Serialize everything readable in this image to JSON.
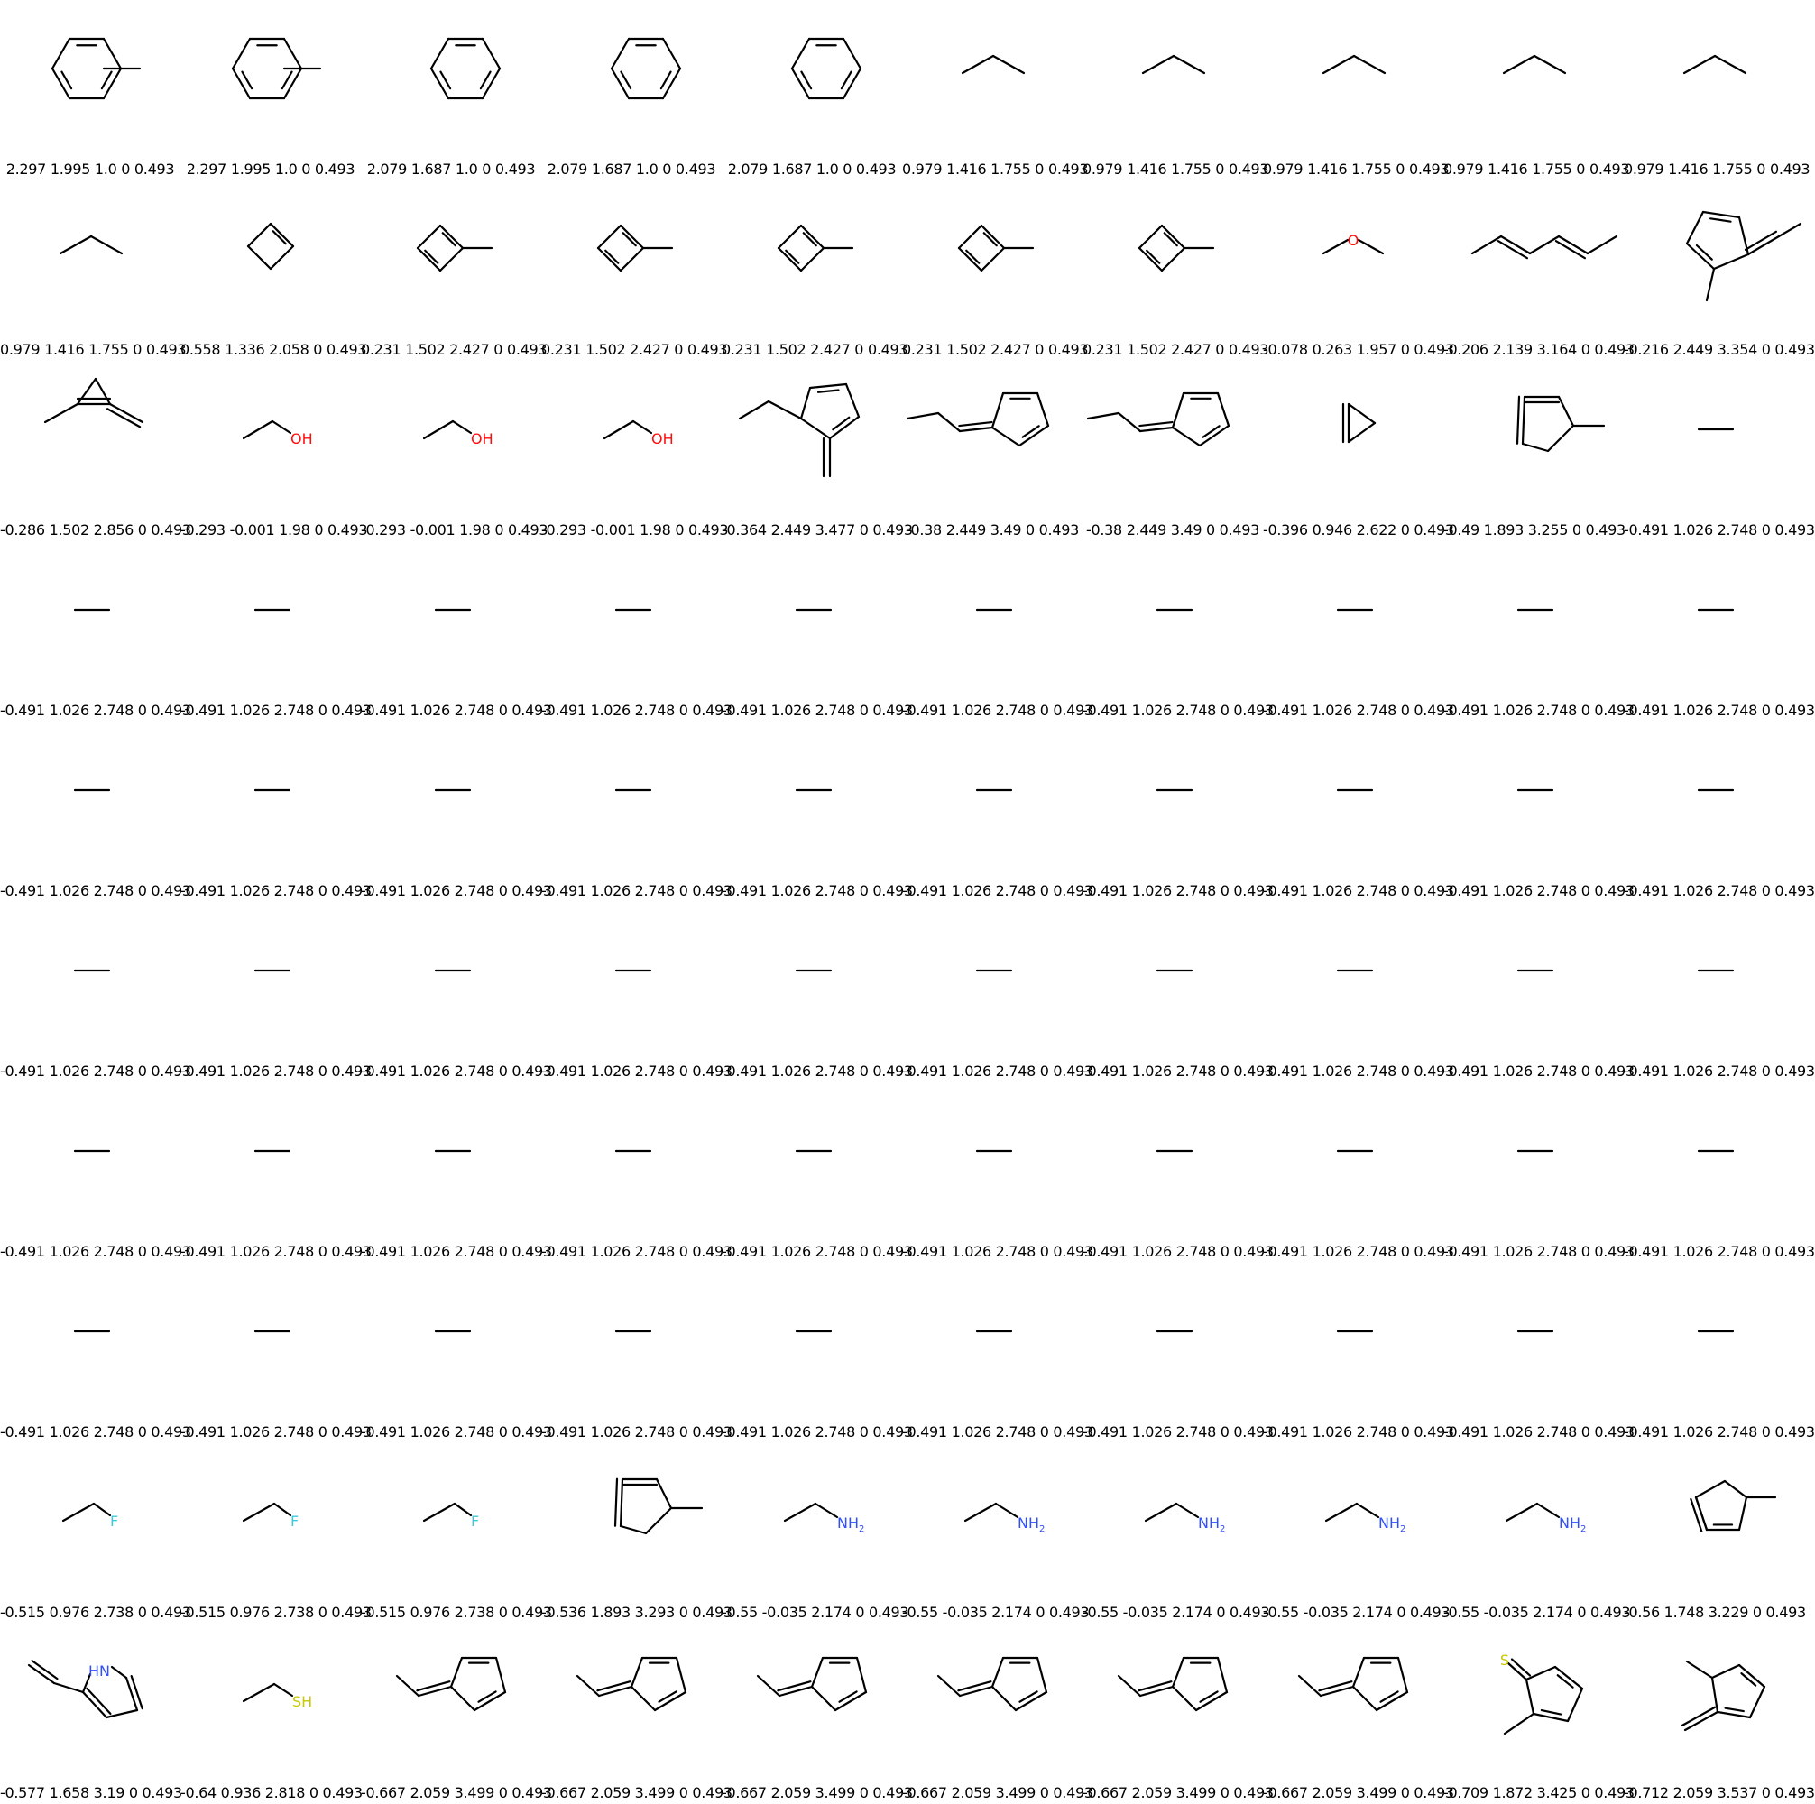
{
  "colors": {
    "bond": "#000000",
    "O": "#ff0d0d",
    "N": "#3050f8",
    "F": "#40c8d8",
    "S": "#c8c800"
  },
  "molecules": [
    {
      "label": "2.297 1.995 1.0 0 0.493",
      "structure": "toluene"
    },
    {
      "label": "2.297 1.995 1.0 0 0.493",
      "structure": "toluene"
    },
    {
      "label": "2.079 1.687 1.0 0 0.493",
      "structure": "benzene"
    },
    {
      "label": "2.079 1.687 1.0 0 0.493",
      "structure": "benzene"
    },
    {
      "label": "2.079 1.687 1.0 0 0.493",
      "structure": "benzene"
    },
    {
      "label": "0.979 1.416 1.755 0 0.493",
      "structure": "propane"
    },
    {
      "label": "0.979 1.416 1.755 0 0.493",
      "structure": "propane"
    },
    {
      "label": "0.979 1.416 1.755 0 0.493",
      "structure": "propane"
    },
    {
      "label": "0.979 1.416 1.755 0 0.493",
      "structure": "propane"
    },
    {
      "label": "0.979 1.416 1.755 0 0.493",
      "structure": "propane"
    },
    {
      "label": "0.979 1.416 1.755 0 0.493",
      "structure": "propane"
    },
    {
      "label": "0.558 1.336 2.058 0 0.493",
      "structure": "cyclobutene"
    },
    {
      "label": "0.231 1.502 2.427 0 0.493",
      "structure": "methylcyclobutadiene"
    },
    {
      "label": "0.231 1.502 2.427 0 0.493",
      "structure": "methylcyclobutadiene"
    },
    {
      "label": "0.231 1.502 2.427 0 0.493",
      "structure": "methylcyclobutadiene"
    },
    {
      "label": "0.231 1.502 2.427 0 0.493",
      "structure": "methylcyclobutadiene"
    },
    {
      "label": "0.231 1.502 2.427 0 0.493",
      "structure": "methylcyclobutadiene"
    },
    {
      "label": "-0.078 0.263 1.957 0 0.493",
      "structure": "dimethyl-ether",
      "atom": "O"
    },
    {
      "label": "-0.206 2.139 3.164 0 0.493",
      "structure": "hexadiene"
    },
    {
      "label": "-0.216 2.449 3.354 0 0.493",
      "structure": "ethylidene-methylcyclopentadiene"
    },
    {
      "label": "-0.286 1.502 2.856 0 0.493",
      "structure": "methylene-methylcyclopropene"
    },
    {
      "label": "-0.293 -0.001 1.98 0 0.493",
      "structure": "ethanol",
      "atom": "OH"
    },
    {
      "label": "-0.293 -0.001 1.98 0 0.493",
      "structure": "ethanol",
      "atom": "OH"
    },
    {
      "label": "-0.293 -0.001 1.98 0 0.493",
      "structure": "ethanol",
      "atom": "OH"
    },
    {
      "label": "-0.364 2.449 3.477 0 0.493",
      "structure": "ethyl-methylene-cyclopentadiene"
    },
    {
      "label": "-0.38 2.449 3.49 0 0.493",
      "structure": "propylidene-cyclopentadiene"
    },
    {
      "label": "-0.38 2.449 3.49 0 0.493",
      "structure": "propylidene-cyclopentadiene"
    },
    {
      "label": "-0.396 0.946 2.622 0 0.493",
      "structure": "cyclopropene"
    },
    {
      "label": "-0.49 1.893 3.255 0 0.493",
      "structure": "methylcyclopentadiene-a"
    },
    {
      "label": "-0.491 1.026 2.748 0 0.493",
      "structure": "ethane"
    },
    {
      "label": "-0.491 1.026 2.748 0 0.493",
      "structure": "ethane"
    },
    {
      "label": "-0.491 1.026 2.748 0 0.493",
      "structure": "ethane"
    },
    {
      "label": "-0.491 1.026 2.748 0 0.493",
      "structure": "ethane"
    },
    {
      "label": "-0.491 1.026 2.748 0 0.493",
      "structure": "ethane"
    },
    {
      "label": "-0.491 1.026 2.748 0 0.493",
      "structure": "ethane"
    },
    {
      "label": "-0.491 1.026 2.748 0 0.493",
      "structure": "ethane"
    },
    {
      "label": "-0.491 1.026 2.748 0 0.493",
      "structure": "ethane"
    },
    {
      "label": "-0.491 1.026 2.748 0 0.493",
      "structure": "ethane"
    },
    {
      "label": "-0.491 1.026 2.748 0 0.493",
      "structure": "ethane"
    },
    {
      "label": "-0.491 1.026 2.748 0 0.493",
      "structure": "ethane"
    },
    {
      "label": "-0.491 1.026 2.748 0 0.493",
      "structure": "ethane"
    },
    {
      "label": "-0.491 1.026 2.748 0 0.493",
      "structure": "ethane"
    },
    {
      "label": "-0.491 1.026 2.748 0 0.493",
      "structure": "ethane"
    },
    {
      "label": "-0.491 1.026 2.748 0 0.493",
      "structure": "ethane"
    },
    {
      "label": "-0.491 1.026 2.748 0 0.493",
      "structure": "ethane"
    },
    {
      "label": "-0.491 1.026 2.748 0 0.493",
      "structure": "ethane"
    },
    {
      "label": "-0.491 1.026 2.748 0 0.493",
      "structure": "ethane"
    },
    {
      "label": "-0.491 1.026 2.748 0 0.493",
      "structure": "ethane"
    },
    {
      "label": "-0.491 1.026 2.748 0 0.493",
      "structure": "ethane"
    },
    {
      "label": "-0.491 1.026 2.748 0 0.493",
      "structure": "ethane"
    },
    {
      "label": "-0.491 1.026 2.748 0 0.493",
      "structure": "ethane"
    },
    {
      "label": "-0.491 1.026 2.748 0 0.493",
      "structure": "ethane"
    },
    {
      "label": "-0.491 1.026 2.748 0 0.493",
      "structure": "ethane"
    },
    {
      "label": "-0.491 1.026 2.748 0 0.493",
      "structure": "ethane"
    },
    {
      "label": "-0.491 1.026 2.748 0 0.493",
      "structure": "ethane"
    },
    {
      "label": "-0.491 1.026 2.748 0 0.493",
      "structure": "ethane"
    },
    {
      "label": "-0.491 1.026 2.748 0 0.493",
      "structure": "ethane"
    },
    {
      "label": "-0.491 1.026 2.748 0 0.493",
      "structure": "ethane"
    },
    {
      "label": "-0.491 1.026 2.748 0 0.493",
      "structure": "ethane"
    },
    {
      "label": "-0.491 1.026 2.748 0 0.493",
      "structure": "ethane"
    },
    {
      "label": "-0.491 1.026 2.748 0 0.493",
      "structure": "ethane"
    },
    {
      "label": "-0.491 1.026 2.748 0 0.493",
      "structure": "ethane"
    },
    {
      "label": "-0.491 1.026 2.748 0 0.493",
      "structure": "ethane"
    },
    {
      "label": "-0.491 1.026 2.748 0 0.493",
      "structure": "ethane"
    },
    {
      "label": "-0.491 1.026 2.748 0 0.493",
      "structure": "ethane"
    },
    {
      "label": "-0.491 1.026 2.748 0 0.493",
      "structure": "ethane"
    },
    {
      "label": "-0.491 1.026 2.748 0 0.493",
      "structure": "ethane"
    },
    {
      "label": "-0.491 1.026 2.748 0 0.493",
      "structure": "ethane"
    },
    {
      "label": "-0.491 1.026 2.748 0 0.493",
      "structure": "ethane"
    },
    {
      "label": "-0.491 1.026 2.748 0 0.493",
      "structure": "ethane"
    },
    {
      "label": "-0.491 1.026 2.748 0 0.493",
      "structure": "ethane"
    },
    {
      "label": "-0.491 1.026 2.748 0 0.493",
      "structure": "ethane"
    },
    {
      "label": "-0.491 1.026 2.748 0 0.493",
      "structure": "ethane"
    },
    {
      "label": "-0.491 1.026 2.748 0 0.493",
      "structure": "ethane"
    },
    {
      "label": "-0.491 1.026 2.748 0 0.493",
      "structure": "ethane"
    },
    {
      "label": "-0.491 1.026 2.748 0 0.493",
      "structure": "ethane"
    },
    {
      "label": "-0.491 1.026 2.748 0 0.493",
      "structure": "ethane"
    },
    {
      "label": "-0.491 1.026 2.748 0 0.493",
      "structure": "ethane"
    },
    {
      "label": "-0.491 1.026 2.748 0 0.493",
      "structure": "ethane"
    },
    {
      "label": "-0.491 1.026 2.748 0 0.493",
      "structure": "ethane"
    },
    {
      "label": "-0.515 0.976 2.738 0 0.493",
      "structure": "fluoroethane",
      "atom": "F"
    },
    {
      "label": "-0.515 0.976 2.738 0 0.493",
      "structure": "fluoroethane",
      "atom": "F"
    },
    {
      "label": "-0.515 0.976 2.738 0 0.493",
      "structure": "fluoroethane",
      "atom": "F"
    },
    {
      "label": "-0.536 1.893 3.293 0 0.493",
      "structure": "methylcyclopentadiene-a"
    },
    {
      "label": "-0.55 -0.035 2.174 0 0.493",
      "structure": "ethylamine",
      "atom": "NH",
      "sub": "2"
    },
    {
      "label": "-0.55 -0.035 2.174 0 0.493",
      "structure": "ethylamine",
      "atom": "NH",
      "sub": "2"
    },
    {
      "label": "-0.55 -0.035 2.174 0 0.493",
      "structure": "ethylamine",
      "atom": "NH",
      "sub": "2"
    },
    {
      "label": "-0.55 -0.035 2.174 0 0.493",
      "structure": "ethylamine",
      "atom": "NH",
      "sub": "2"
    },
    {
      "label": "-0.55 -0.035 2.174 0 0.493",
      "structure": "ethylamine",
      "atom": "NH",
      "sub": "2"
    },
    {
      "label": "-0.56 1.748 3.229 0 0.493",
      "structure": "methylcyclopentadiene-b"
    },
    {
      "label": "-0.577 1.658 3.19 0 0.493",
      "structure": "vinylpyrrole",
      "atom": "HN"
    },
    {
      "label": "-0.64 0.936 2.818 0 0.493",
      "structure": "ethanethiol",
      "atom": "SH"
    },
    {
      "label": "-0.667 2.059 3.499 0 0.493",
      "structure": "ethylidene-cyclopentadiene"
    },
    {
      "label": "-0.667 2.059 3.499 0 0.493",
      "structure": "ethylidene-cyclopentadiene"
    },
    {
      "label": "-0.667 2.059 3.499 0 0.493",
      "structure": "ethylidene-cyclopentadiene"
    },
    {
      "label": "-0.667 2.059 3.499 0 0.493",
      "structure": "ethylidene-cyclopentadiene"
    },
    {
      "label": "-0.667 2.059 3.499 0 0.493",
      "structure": "ethylidene-cyclopentadiene"
    },
    {
      "label": "-0.667 2.059 3.499 0 0.493",
      "structure": "ethylidene-cyclopentadiene"
    },
    {
      "label": "-0.709 1.872 3.425 0 0.493",
      "structure": "methyl-thioxo-cyclopentadiene",
      "atom": "S"
    },
    {
      "label": "-0.712 2.059 3.537 0 0.493",
      "structure": "methyl-methylene-cyclopentadiene"
    }
  ]
}
